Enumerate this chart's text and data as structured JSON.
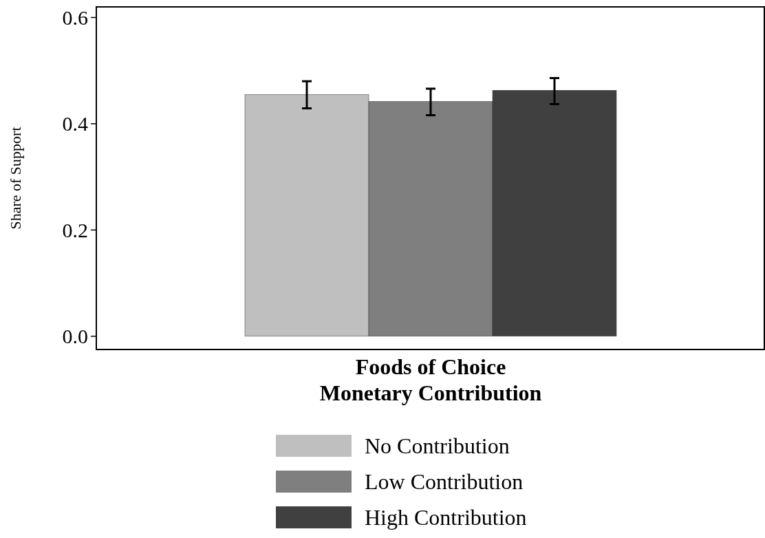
{
  "chart_data": {
    "type": "bar",
    "categories": [
      null
    ],
    "xlabel": "Foods of Choice\nMonetary Contribution",
    "ylabel": "Share of Support",
    "series": [
      {
        "name": "No Contribution",
        "color": "#bfbfbf",
        "values": [
          0.455
        ],
        "errors": [
          [
            0.429,
            0.48
          ]
        ]
      },
      {
        "name": "Low Contribution",
        "color": "#7f7f7f",
        "values": [
          0.442
        ],
        "errors": [
          [
            0.416,
            0.466
          ]
        ]
      },
      {
        "name": "High Contribution",
        "color": "#404040",
        "values": [
          0.463
        ],
        "errors": [
          [
            0.437,
            0.486
          ]
        ]
      }
    ],
    "ylim": [
      -0.025,
      0.62
    ],
    "yticks": [
      {
        "value": 0,
        "label": "0.0"
      },
      {
        "value": 0.2,
        "label": "0.2"
      },
      {
        "value": 0.4,
        "label": "0.4"
      },
      {
        "value": 0.6,
        "label": "0.6"
      }
    ],
    "grid": false,
    "legend": "bottom"
  }
}
